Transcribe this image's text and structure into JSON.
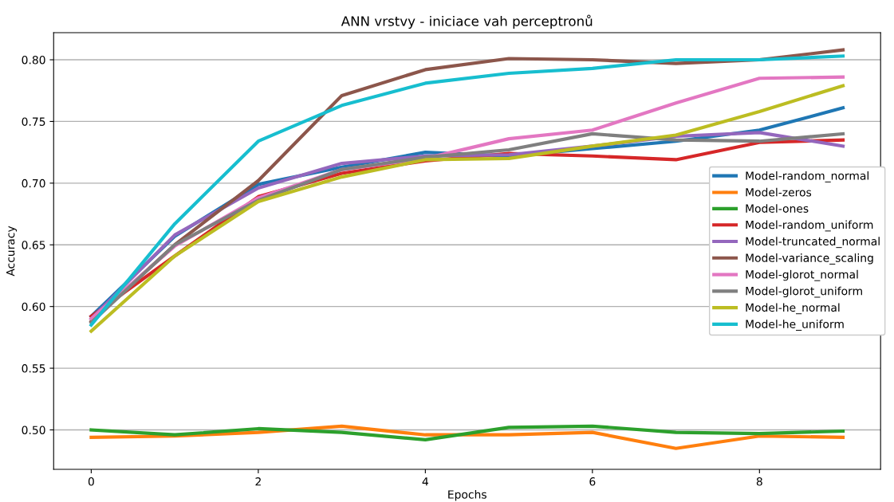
{
  "chart_data": {
    "type": "line",
    "title": "ANN vrstvy - iniciace vah perceptronů",
    "xlabel": "Epochs",
    "ylabel": "Accuracy",
    "x": [
      0,
      1,
      2,
      3,
      4,
      5,
      6,
      7,
      8,
      9
    ],
    "xlim": [
      -0.45,
      9.45
    ],
    "xticks": [
      0,
      2,
      4,
      6,
      8
    ],
    "ylim": [
      0.468,
      0.822
    ],
    "yticks": [
      {
        "value": 0.5,
        "label": "0.50"
      },
      {
        "value": 0.55,
        "label": "0.55"
      },
      {
        "value": 0.6,
        "label": "0.60"
      },
      {
        "value": 0.65,
        "label": "0.65"
      },
      {
        "value": 0.7,
        "label": "0.70"
      },
      {
        "value": 0.75,
        "label": "0.75"
      },
      {
        "value": 0.8,
        "label": "0.80"
      }
    ],
    "grid": "y",
    "legend": "right",
    "line_style": "solid",
    "marker": "none",
    "series": [
      {
        "name": "Model-random_normal",
        "color": "#1f77b4",
        "values": [
          0.592,
          0.657,
          0.699,
          0.713,
          0.725,
          0.722,
          0.728,
          0.734,
          0.743,
          0.761
        ]
      },
      {
        "name": "Model-zeros",
        "color": "#ff7f0e",
        "values": [
          0.494,
          0.495,
          0.498,
          0.503,
          0.496,
          0.496,
          0.498,
          0.485,
          0.495,
          0.494
        ]
      },
      {
        "name": "Model-ones",
        "color": "#2ca02c",
        "values": [
          0.5,
          0.496,
          0.501,
          0.498,
          0.492,
          0.502,
          0.503,
          0.498,
          0.497,
          0.499
        ]
      },
      {
        "name": "Model-random_uniform",
        "color": "#d62728",
        "values": [
          0.592,
          0.641,
          0.689,
          0.708,
          0.718,
          0.724,
          0.722,
          0.719,
          0.733,
          0.735
        ]
      },
      {
        "name": "Model-truncated_normal",
        "color": "#9467bd",
        "values": [
          0.59,
          0.658,
          0.696,
          0.716,
          0.722,
          0.723,
          0.73,
          0.738,
          0.741,
          0.73
        ]
      },
      {
        "name": "Model-variance_scaling",
        "color": "#8c564b",
        "values": [
          0.588,
          0.65,
          0.702,
          0.771,
          0.792,
          0.801,
          0.8,
          0.797,
          0.8,
          0.808
        ]
      },
      {
        "name": "Model-glorot_normal",
        "color": "#e377c2",
        "values": [
          0.59,
          0.649,
          0.688,
          0.711,
          0.72,
          0.736,
          0.743,
          0.765,
          0.785,
          0.786
        ]
      },
      {
        "name": "Model-glorot_uniform",
        "color": "#7f7f7f",
        "values": [
          0.587,
          0.65,
          0.686,
          0.711,
          0.721,
          0.727,
          0.74,
          0.735,
          0.734,
          0.74
        ]
      },
      {
        "name": "Model-he_normal",
        "color": "#bcbd22",
        "values": [
          0.58,
          0.641,
          0.685,
          0.705,
          0.719,
          0.72,
          0.73,
          0.739,
          0.758,
          0.779
        ]
      },
      {
        "name": "Model-he_uniform",
        "color": "#17becf",
        "values": [
          0.585,
          0.667,
          0.734,
          0.763,
          0.781,
          0.789,
          0.793,
          0.8,
          0.8,
          0.803
        ]
      }
    ]
  }
}
